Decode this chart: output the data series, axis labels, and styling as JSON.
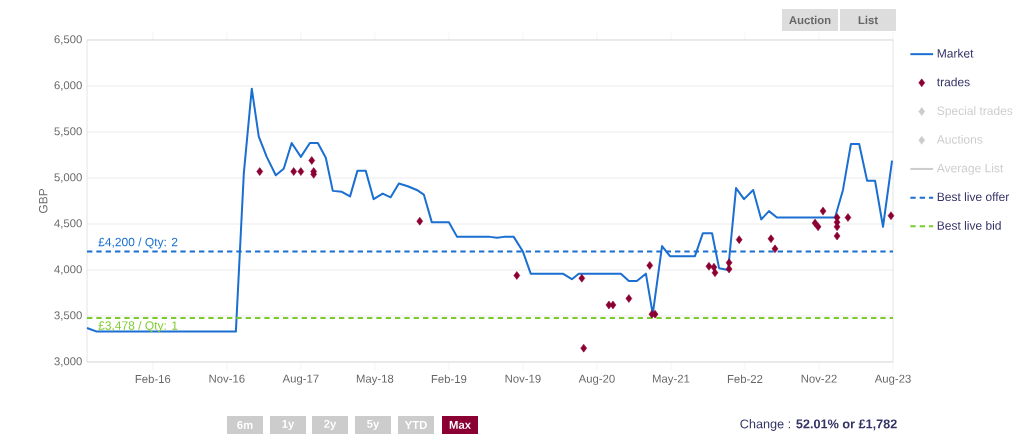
{
  "chart_data": {
    "type": "line",
    "ylabel": "GBP",
    "xlim": [
      "2015-06-01",
      "2023-08-01"
    ],
    "ylim": [
      3000,
      6500
    ],
    "xticks": [
      {
        "value": "2016-02",
        "label": "Feb-16"
      },
      {
        "value": "2016-11",
        "label": "Nov-16"
      },
      {
        "value": "2017-08",
        "label": "Aug-17"
      },
      {
        "value": "2018-05",
        "label": "May-18"
      },
      {
        "value": "2019-02",
        "label": "Feb-19"
      },
      {
        "value": "2019-11",
        "label": "Nov-19"
      },
      {
        "value": "2020-08",
        "label": "Aug-20"
      },
      {
        "value": "2021-05",
        "label": "May-21"
      },
      {
        "value": "2022-02",
        "label": "Feb-22"
      },
      {
        "value": "2022-11",
        "label": "Nov-22"
      },
      {
        "value": "2023-08",
        "label": "Aug-23"
      }
    ],
    "yticks": [
      {
        "value": 3000,
        "label": "3,000"
      },
      {
        "value": 3500,
        "label": "3,500"
      },
      {
        "value": 4000,
        "label": "4,000"
      },
      {
        "value": 4500,
        "label": "4,500"
      },
      {
        "value": 5000,
        "label": "5,000"
      },
      {
        "value": 5500,
        "label": "5,500"
      },
      {
        "value": 6000,
        "label": "6,000"
      },
      {
        "value": 6500,
        "label": "6,500"
      }
    ],
    "grid": "y",
    "legend": "right",
    "series": [
      {
        "name": "Market",
        "color": "#1a6fd1",
        "marker": "none",
        "x": [
          "2015-06-01",
          "2015-07-07",
          "2016-12-04",
          "2017-01-03",
          "2017-02-02",
          "2017-02-28",
          "2017-03-27",
          "2017-04-30",
          "2017-05-29",
          "2017-06-28",
          "2017-08-01",
          "2017-09-04",
          "2017-10-03",
          "2017-11-02",
          "2017-11-28",
          "2017-12-31",
          "2018-01-31",
          "2018-02-28",
          "2018-03-28",
          "2018-04-27",
          "2018-05-30",
          "2018-06-29",
          "2018-07-29",
          "2018-09-01",
          "2018-10-04",
          "2018-10-30",
          "2018-11-29",
          "2019-02-01",
          "2019-03-01",
          "2019-07-01",
          "2019-07-27",
          "2019-08-22",
          "2019-09-28",
          "2019-11-01",
          "2019-11-30",
          "2020-03-27",
          "2020-04-30",
          "2020-05-25",
          "2020-10-29",
          "2020-11-28",
          "2020-12-27",
          "2021-01-30",
          "2021-02-25",
          "2021-03-29",
          "2021-04-28",
          "2021-07-29",
          "2021-08-28",
          "2021-10-01",
          "2021-10-27",
          "2021-11-30",
          "2021-12-29",
          "2022-01-28",
          "2022-03-01",
          "2022-03-31",
          "2022-04-29",
          "2022-05-28",
          "2022-12-30",
          "2023-01-29",
          "2023-02-28",
          "2023-03-28",
          "2023-04-27",
          "2023-05-26",
          "2023-06-25",
          "2023-07-28"
        ],
        "values": [
          3370,
          3330,
          3330,
          5050,
          5970,
          5450,
          5230,
          5030,
          5100,
          5380,
          5230,
          5380,
          5380,
          5220,
          4860,
          4850,
          4800,
          5080,
          5080,
          4770,
          4830,
          4790,
          4940,
          4910,
          4870,
          4820,
          4520,
          4520,
          4360,
          4360,
          4350,
          4360,
          4360,
          4200,
          3960,
          3960,
          3900,
          3960,
          3960,
          3880,
          3880,
          3960,
          3520,
          4260,
          4150,
          4150,
          4400,
          4400,
          4020,
          4000,
          4890,
          4770,
          4870,
          4550,
          4640,
          4570,
          4570,
          4870,
          5370,
          5370,
          4970,
          4970,
          4470,
          5190
        ]
      },
      {
        "name": "trades",
        "type": "scatter",
        "color": "#8b0033",
        "marker": "diamond",
        "x": [
          "2017-03-01",
          "2017-07-05",
          "2017-08-01",
          "2017-09-11",
          "2017-09-18",
          "2017-09-18",
          "2018-10-15",
          "2019-10-09",
          "2020-06-06",
          "2020-06-13",
          "2020-09-15",
          "2020-09-30",
          "2020-11-28",
          "2021-02-14",
          "2021-02-22",
          "2021-03-03",
          "2021-09-20",
          "2021-10-08",
          "2021-10-12",
          "2021-12-03",
          "2021-12-03",
          "2022-01-10",
          "2022-05-06",
          "2022-05-21",
          "2022-10-17",
          "2022-10-28",
          "2022-11-16",
          "2023-01-07",
          "2023-01-07",
          "2023-01-07",
          "2023-01-07",
          "2023-02-17",
          "2023-07-24"
        ],
        "values": [
          5070,
          5070,
          5070,
          5190,
          5070,
          5040,
          4530,
          3940,
          3910,
          3150,
          3620,
          3620,
          3690,
          4050,
          3520,
          3520,
          4040,
          4030,
          3970,
          4080,
          4010,
          4330,
          4340,
          4230,
          4510,
          4470,
          4640,
          4570,
          4520,
          4470,
          4370,
          4570,
          4590
        ]
      },
      {
        "name": "Special trades",
        "type": "scatter",
        "color": "#cccccc",
        "marker": "diamond"
      },
      {
        "name": "Auctions",
        "type": "scatter",
        "color": "#cccccc",
        "marker": "diamond"
      },
      {
        "name": "Average List",
        "type": "line",
        "color": "#cccccc",
        "marker": "none"
      },
      {
        "name": "Best live offer",
        "type": "line",
        "color": "#1a6fd1",
        "marker": "none",
        "line_style": "dashed",
        "x": [
          "2015-06-01",
          "2023-08-01"
        ],
        "values": [
          4200,
          4200
        ]
      },
      {
        "name": "Best live bid",
        "type": "line",
        "color": "#7ccc2c",
        "marker": "none",
        "line_style": "dashed",
        "x": [
          "2015-06-01",
          "2023-08-01"
        ],
        "values": [
          3478,
          3478
        ]
      }
    ],
    "annotations": [
      {
        "text": "£4,200 / Qty: 2",
        "x": "2015-07-01",
        "y": 4200
      },
      {
        "text": "£3,478 / Qty: 1",
        "x": "2015-07-01",
        "y": 3478
      },
      "Auction",
      "List",
      "6m",
      "1y",
      "2y",
      "5y",
      "YTD",
      "Max",
      "Change : **52.01% or £1,782**"
    ]
  }
}
